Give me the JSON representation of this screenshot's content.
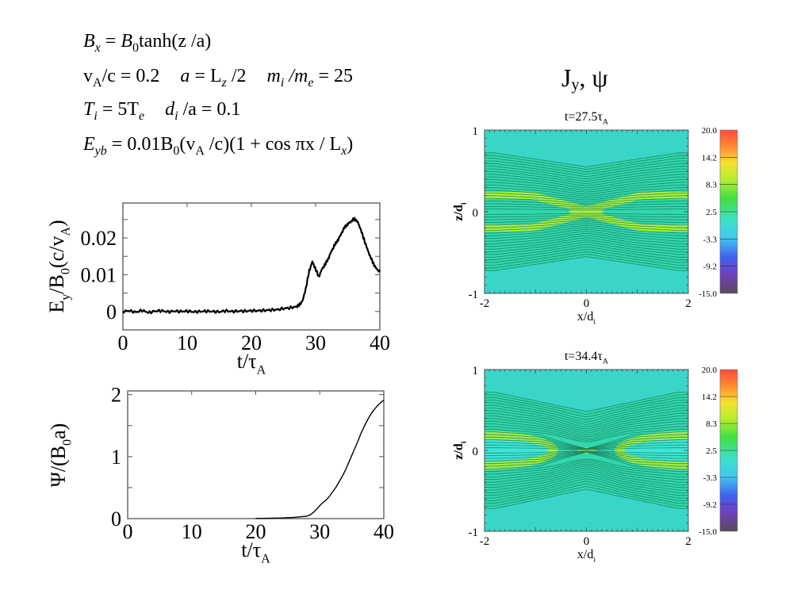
{
  "equations": {
    "line1": {
      "lhs_var": "B",
      "lhs_sub": "x",
      "rhs_a": "B",
      "rhs_sub": "0",
      "rhs_b": "tanh(z /a)"
    },
    "line2": {
      "p1_v": "v",
      "p1_sub": "A",
      "p1_rest": "/c = 0.2",
      "p2_a": "a",
      "p2_eq": " = L",
      "p2_sub": "z",
      "p2_rest": " /2",
      "p3_m": "m",
      "p3_sub_i": "i",
      "p3_slash": " /m",
      "p3_sub_e": "e",
      "p3_rest": " = 25"
    },
    "line3": {
      "p1_T": "T",
      "p1_sub": "i",
      "p1_rest": " = 5T",
      "p1_sub_e": "e",
      "p2_d": "d",
      "p2_sub": "i",
      "p2_rest": " /a = 0.1"
    },
    "line4": {
      "lhs": "E",
      "lhs_sub": "yb",
      "rhs_a": " = 0.01B",
      "rhs_sub0": "0",
      "rhs_b": "(v",
      "rhs_subA": "A",
      "rhs_c": " /c)(1 + cos πx / L",
      "rhs_subx": "x",
      "rhs_d": ")"
    }
  },
  "panel_title": {
    "main": "J",
    "sub": "y",
    "rest": ", ψ"
  },
  "chart_data": [
    {
      "type": "line",
      "title": "",
      "ylabel": "E_y/B_0(c/v_A)",
      "ylabel_parts": {
        "a": "E",
        "a_sub": "y",
        "b": "/B",
        "b_sub": "0",
        "c": "(c/v",
        "c_sub": "A",
        "d": ")"
      },
      "xlabel_parts": {
        "a": "t/τ",
        "a_sub": "A"
      },
      "xlabel": "t/τ_A",
      "xlim": [
        0,
        40
      ],
      "ylim": [
        -0.005,
        0.0295
      ],
      "xticks": [
        0,
        10,
        20,
        30,
        40
      ],
      "xtick_labels": [
        "0",
        "10",
        "20",
        "30",
        "40"
      ],
      "yticks": [
        0,
        0.01,
        0.02
      ],
      "ytick_labels": [
        "0",
        "0.01",
        "0.02"
      ],
      "yminor": [
        -0.005,
        0.005,
        0.015,
        0.025
      ],
      "grid": false,
      "series": [
        {
          "name": "E_y",
          "x": [
            0,
            1,
            2,
            3,
            4,
            5,
            6,
            7,
            8,
            9,
            10,
            11,
            12,
            13,
            14,
            15,
            16,
            17,
            18,
            19,
            20,
            21,
            22,
            23,
            24,
            25,
            26,
            27,
            27.5,
            28,
            28.5,
            29,
            29.5,
            30,
            30.5,
            31,
            31.5,
            32,
            32.5,
            33,
            33.5,
            34,
            34.5,
            35,
            35.5,
            36,
            36.5,
            37,
            37.5,
            38,
            38.5,
            39,
            39.5,
            40
          ],
          "y": [
            0,
            0.0002,
            -0.0002,
            0.0003,
            -0.0003,
            0.0001,
            0.0002,
            -0.0001,
            0.0001,
            0,
            0.0001,
            -0.0001,
            0,
            0.0001,
            0,
            -0.0001,
            0.0002,
            0,
            0.0001,
            0.0001,
            0.0002,
            0.0002,
            0.0003,
            0.0004,
            0.0005,
            0.0008,
            0.001,
            0.0013,
            0.0018,
            0.003,
            0.0065,
            0.011,
            0.0135,
            0.0115,
            0.0095,
            0.0115,
            0.0128,
            0.0145,
            0.0165,
            0.0182,
            0.0195,
            0.0212,
            0.0228,
            0.0238,
            0.0245,
            0.0252,
            0.0245,
            0.0225,
            0.0198,
            0.0172,
            0.015,
            0.013,
            0.0115,
            0.0108
          ]
        }
      ]
    },
    {
      "type": "line",
      "title": "",
      "ylabel": "Ψ/(B_0 a)",
      "ylabel_parts": {
        "a": "Ψ/(B",
        "a_sub": "0",
        "b": "a)"
      },
      "xlabel_parts": {
        "a": "t/τ",
        "a_sub": "A"
      },
      "xlabel": "t/τ_A",
      "xlim": [
        0,
        40
      ],
      "ylim": [
        0,
        2.06
      ],
      "xticks": [
        0,
        10,
        20,
        30,
        40
      ],
      "xtick_labels": [
        "0",
        "10",
        "20",
        "30",
        "40"
      ],
      "yticks": [
        0,
        1,
        2
      ],
      "ytick_labels": [
        "0",
        "1",
        "2"
      ],
      "yminor": [
        0.5,
        1.5
      ],
      "grid": false,
      "series": [
        {
          "name": "Psi",
          "x": [
            20,
            22,
            24,
            26,
            27,
            28,
            28.5,
            29,
            29.5,
            30,
            30.5,
            31,
            31.5,
            32,
            32.5,
            33,
            33.5,
            34,
            34.5,
            35,
            35.5,
            36,
            36.5,
            37,
            37.5,
            38,
            38.5,
            39,
            39.5,
            40
          ],
          "y": [
            0.002,
            0.005,
            0.01,
            0.02,
            0.03,
            0.04,
            0.06,
            0.1,
            0.15,
            0.21,
            0.26,
            0.3,
            0.36,
            0.43,
            0.5,
            0.59,
            0.68,
            0.78,
            0.9,
            1.02,
            1.14,
            1.26,
            1.39,
            1.5,
            1.6,
            1.69,
            1.76,
            1.82,
            1.87,
            1.91
          ]
        }
      ]
    },
    {
      "type": "heatmap",
      "title_parts": {
        "a": "t=27.5τ",
        "a_sub": "A"
      },
      "title": "t=27.5τ_A",
      "xlabel_parts": {
        "a": "x/d",
        "a_sub": "i"
      },
      "ylabel_parts": {
        "a": "z/d",
        "a_sub": "i"
      },
      "xlabel": "x/d_i",
      "ylabel": "z/d_i",
      "xlim": [
        -2,
        2
      ],
      "ylim": [
        -1,
        1
      ],
      "xtick_labels": [
        "-2",
        "0",
        "2"
      ],
      "ytick_labels": [
        "-1",
        "0",
        "1"
      ],
      "xticks": [
        -2,
        0,
        2
      ],
      "yticks": [
        -1,
        0,
        1
      ],
      "colorbar": {
        "min": -15.0,
        "max": 20.0,
        "labels": [
          "20.0",
          "14.2",
          "8.3",
          "2.5",
          "-3.3",
          "-9.2",
          "-15.0"
        ]
      },
      "field": {
        "sheet_halfwidth_edge": 0.72,
        "sheet_halfwidth_center": 0.55,
        "core_halfwidth": 0.2,
        "island_length": 0.0,
        "xpoint_x": 0,
        "contour_levels": 22
      }
    },
    {
      "type": "heatmap",
      "title_parts": {
        "a": "t=34.4τ",
        "a_sub": "A"
      },
      "title": "t=34.4τ_A",
      "xlabel_parts": {
        "a": "x/d",
        "a_sub": "i"
      },
      "ylabel_parts": {
        "a": "z/d",
        "a_sub": "i"
      },
      "xlabel": "x/d_i",
      "ylabel": "z/d_i",
      "xlim": [
        -2,
        2
      ],
      "ylim": [
        -1,
        1
      ],
      "xtick_labels": [
        "-2",
        "0",
        "2"
      ],
      "ytick_labels": [
        "-1",
        "0",
        "1"
      ],
      "xticks": [
        -2,
        0,
        2
      ],
      "yticks": [
        -1,
        0,
        1
      ],
      "colorbar": {
        "min": -15.0,
        "max": 20.0,
        "labels": [
          "20.0",
          "14.2",
          "8.3",
          "2.5",
          "-3.3",
          "-9.2",
          "-15.0"
        ]
      },
      "field": {
        "sheet_halfwidth_edge": 0.72,
        "sheet_halfwidth_center": 0.48,
        "core_halfwidth": 0.22,
        "island_length": 1.4,
        "xpoint_x": 0,
        "contour_levels": 22
      }
    }
  ],
  "colors": {
    "background_cyan": "#3fe6d8",
    "contour_line": "#1d7a5a",
    "sheet_green": "#2ed8a8",
    "core_yellowgreen": "#a8f040",
    "colorbar": [
      "#ff4a3a",
      "#ff8a30",
      "#f8e030",
      "#b8ee30",
      "#40e040",
      "#40e0c8",
      "#40c8f0",
      "#4060f0",
      "#7040c0",
      "#5a4a5a"
    ]
  }
}
